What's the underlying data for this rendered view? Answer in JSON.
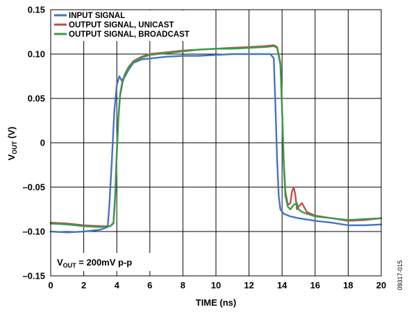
{
  "chart_data": {
    "type": "line",
    "xlabel": "TIME (ns)",
    "ylabel_main": "V",
    "ylabel_sub": "OUT",
    "ylabel_unit": " (V)",
    "xlim": [
      0,
      20
    ],
    "ylim": [
      -0.15,
      0.15
    ],
    "x_ticks": [
      "0",
      "2",
      "4",
      "6",
      "8",
      "10",
      "12",
      "14",
      "16",
      "18",
      "20"
    ],
    "y_ticks": [
      "0.15",
      "0.10",
      "0.05",
      "0",
      "–0.05",
      "–0.10",
      "–0.15"
    ],
    "y_tick_values": [
      0.15,
      0.1,
      0.05,
      0,
      -0.05,
      -0.1,
      -0.15
    ],
    "grid": true,
    "legend_placement": "top-left",
    "annotation": {
      "main": "V",
      "sub": "OUT",
      "rest": " = 200mV p-p"
    },
    "figure_id": "09317-015",
    "series": [
      {
        "name": "INPUT SIGNAL",
        "color": "#4472c4",
        "x": [
          0,
          1,
          2,
          3,
          3.45,
          3.55,
          3.7,
          3.85,
          4.0,
          4.15,
          4.3,
          4.5,
          4.7,
          5.0,
          5.5,
          6.0,
          7,
          8,
          9,
          10,
          11,
          12,
          13,
          13.3,
          13.5,
          13.6,
          13.7,
          13.8,
          13.9,
          14.1,
          14.5,
          15,
          16,
          17,
          18,
          19,
          20
        ],
        "y": [
          -0.1,
          -0.101,
          -0.1,
          -0.098,
          -0.095,
          -0.07,
          -0.02,
          0.035,
          0.065,
          0.075,
          0.07,
          0.075,
          0.082,
          0.09,
          0.094,
          0.095,
          0.097,
          0.098,
          0.098,
          0.099,
          0.1,
          0.1,
          0.1,
          0.1,
          0.095,
          0.04,
          -0.02,
          -0.06,
          -0.075,
          -0.08,
          -0.083,
          -0.085,
          -0.088,
          -0.09,
          -0.093,
          -0.093,
          -0.092
        ]
      },
      {
        "name": "OUTPUT SIGNAL, UNICAST",
        "color": "#c0504d",
        "x": [
          0,
          1,
          2,
          3,
          3.6,
          3.8,
          3.9,
          4.0,
          4.1,
          4.2,
          4.35,
          4.5,
          4.7,
          5.0,
          5.5,
          6.0,
          7,
          8,
          9,
          10,
          11,
          12,
          13,
          13.5,
          13.7,
          13.9,
          14.0,
          14.1,
          14.2,
          14.35,
          14.5,
          14.6,
          14.7,
          14.8,
          14.9,
          15.0,
          15.2,
          15.5,
          16,
          17,
          18,
          19,
          20
        ],
        "y": [
          -0.09,
          -0.091,
          -0.093,
          -0.094,
          -0.094,
          -0.09,
          -0.06,
          -0.01,
          0.03,
          0.055,
          0.07,
          0.078,
          0.085,
          0.092,
          0.097,
          0.1,
          0.102,
          0.104,
          0.105,
          0.106,
          0.107,
          0.108,
          0.109,
          0.11,
          0.108,
          0.09,
          0.04,
          -0.02,
          -0.055,
          -0.07,
          -0.068,
          -0.055,
          -0.05,
          -0.058,
          -0.075,
          -0.072,
          -0.068,
          -0.078,
          -0.082,
          -0.085,
          -0.088,
          -0.087,
          -0.085
        ]
      },
      {
        "name": "OUTPUT SIGNAL, BROADCAST",
        "color": "#3a9a4f",
        "x": [
          0,
          1,
          2,
          3,
          3.6,
          3.8,
          3.9,
          4.0,
          4.1,
          4.2,
          4.35,
          4.5,
          4.7,
          5.0,
          5.5,
          6.0,
          7,
          8,
          9,
          10,
          11,
          12,
          13,
          13.5,
          13.7,
          13.9,
          14.0,
          14.1,
          14.2,
          14.35,
          14.5,
          14.7,
          14.9,
          15.0,
          15.2,
          15.5,
          16,
          17,
          18,
          19,
          20
        ],
        "y": [
          -0.091,
          -0.092,
          -0.094,
          -0.095,
          -0.094,
          -0.091,
          -0.062,
          -0.012,
          0.028,
          0.053,
          0.068,
          0.077,
          0.084,
          0.091,
          0.096,
          0.099,
          0.101,
          0.103,
          0.105,
          0.106,
          0.106,
          0.107,
          0.108,
          0.109,
          0.107,
          0.088,
          0.038,
          -0.025,
          -0.06,
          -0.072,
          -0.075,
          -0.07,
          -0.068,
          -0.075,
          -0.078,
          -0.08,
          -0.083,
          -0.085,
          -0.087,
          -0.086,
          -0.085
        ]
      }
    ]
  }
}
